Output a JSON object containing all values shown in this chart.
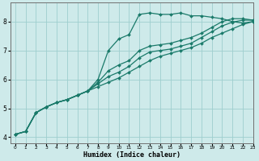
{
  "xlabel": "Humidex (Indice chaleur)",
  "bg_color": "#ceeaea",
  "grid_color": "#9ecece",
  "line_color": "#1a7a6a",
  "xlim": [
    -0.5,
    23
  ],
  "ylim": [
    3.8,
    8.65
  ],
  "yticks": [
    4,
    5,
    6,
    7,
    8
  ],
  "xticks": [
    0,
    1,
    2,
    3,
    4,
    5,
    6,
    7,
    8,
    9,
    10,
    11,
    12,
    13,
    14,
    15,
    16,
    17,
    18,
    19,
    20,
    21,
    22,
    23
  ],
  "series": [
    {
      "x": [
        0,
        1,
        2,
        3,
        4,
        5,
        6,
        7,
        8,
        9,
        10,
        11,
        12,
        13,
        14,
        15,
        16,
        17,
        18,
        19,
        20,
        21,
        22,
        23
      ],
      "y": [
        4.1,
        4.2,
        4.85,
        5.05,
        5.2,
        5.3,
        5.45,
        5.6,
        6.0,
        7.0,
        7.4,
        7.55,
        8.25,
        8.3,
        8.25,
        8.25,
        8.3,
        8.2,
        8.2,
        8.15,
        8.1,
        8.0,
        7.95,
        8.0
      ]
    },
    {
      "x": [
        0,
        1,
        2,
        3,
        4,
        5,
        6,
        7,
        8,
        9,
        10,
        11,
        12,
        13,
        14,
        15,
        16,
        17,
        18,
        19,
        20,
        21,
        22,
        23
      ],
      "y": [
        4.1,
        4.2,
        4.85,
        5.05,
        5.2,
        5.3,
        5.45,
        5.6,
        5.9,
        6.3,
        6.5,
        6.65,
        7.0,
        7.15,
        7.2,
        7.25,
        7.35,
        7.45,
        7.6,
        7.8,
        8.0,
        8.1,
        8.1,
        8.05
      ]
    },
    {
      "x": [
        0,
        1,
        2,
        3,
        4,
        5,
        6,
        7,
        8,
        9,
        10,
        11,
        12,
        13,
        14,
        15,
        16,
        17,
        18,
        19,
        20,
        21,
        22,
        23
      ],
      "y": [
        4.1,
        4.2,
        4.85,
        5.05,
        5.2,
        5.3,
        5.45,
        5.6,
        5.85,
        6.1,
        6.25,
        6.45,
        6.75,
        6.95,
        7.0,
        7.05,
        7.15,
        7.25,
        7.45,
        7.65,
        7.85,
        7.98,
        8.05,
        8.05
      ]
    },
    {
      "x": [
        0,
        1,
        2,
        3,
        4,
        5,
        6,
        7,
        8,
        9,
        10,
        11,
        12,
        13,
        14,
        15,
        16,
        17,
        18,
        19,
        20,
        21,
        22,
        23
      ],
      "y": [
        4.1,
        4.2,
        4.85,
        5.05,
        5.2,
        5.3,
        5.45,
        5.6,
        5.75,
        5.9,
        6.05,
        6.25,
        6.45,
        6.65,
        6.8,
        6.9,
        7.0,
        7.1,
        7.25,
        7.45,
        7.6,
        7.75,
        7.9,
        8.0
      ]
    }
  ]
}
